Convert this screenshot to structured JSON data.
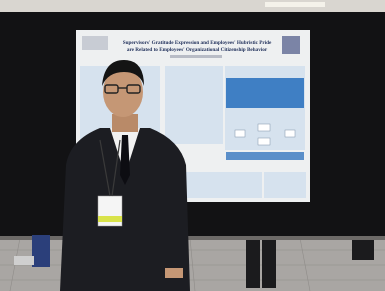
{
  "poster": {
    "title_lines": [
      "Supervisors' Gratitude Expression and Employees' Hubristic Pride",
      "are Related to Employees' Organizational Citizenship Behavior"
    ]
  }
}
